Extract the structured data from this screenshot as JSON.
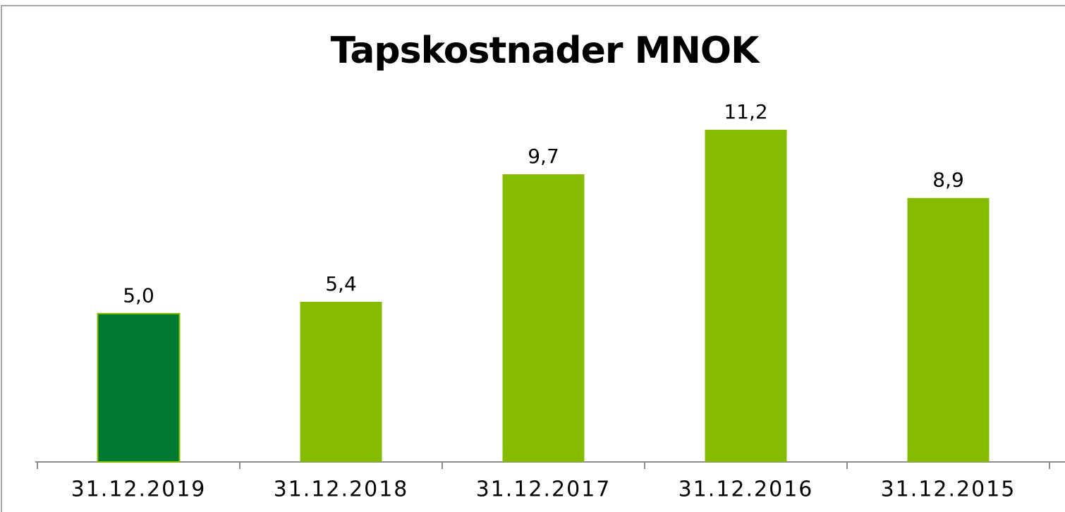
{
  "chart_data": {
    "type": "bar",
    "title": "Tapskostnader MNOK",
    "categories": [
      "31.12.2019",
      "31.12.2018",
      "31.12.2017",
      "31.12.2016",
      "31.12.2015"
    ],
    "values": [
      5.0,
      5.4,
      9.7,
      11.2,
      8.9
    ],
    "value_labels": [
      "5,0",
      "5,4",
      "9,7",
      "11,2",
      "8,9"
    ],
    "colors": [
      "#007a33",
      "#86bc00",
      "#86bc00",
      "#86bc00",
      "#86bc00"
    ]
  }
}
